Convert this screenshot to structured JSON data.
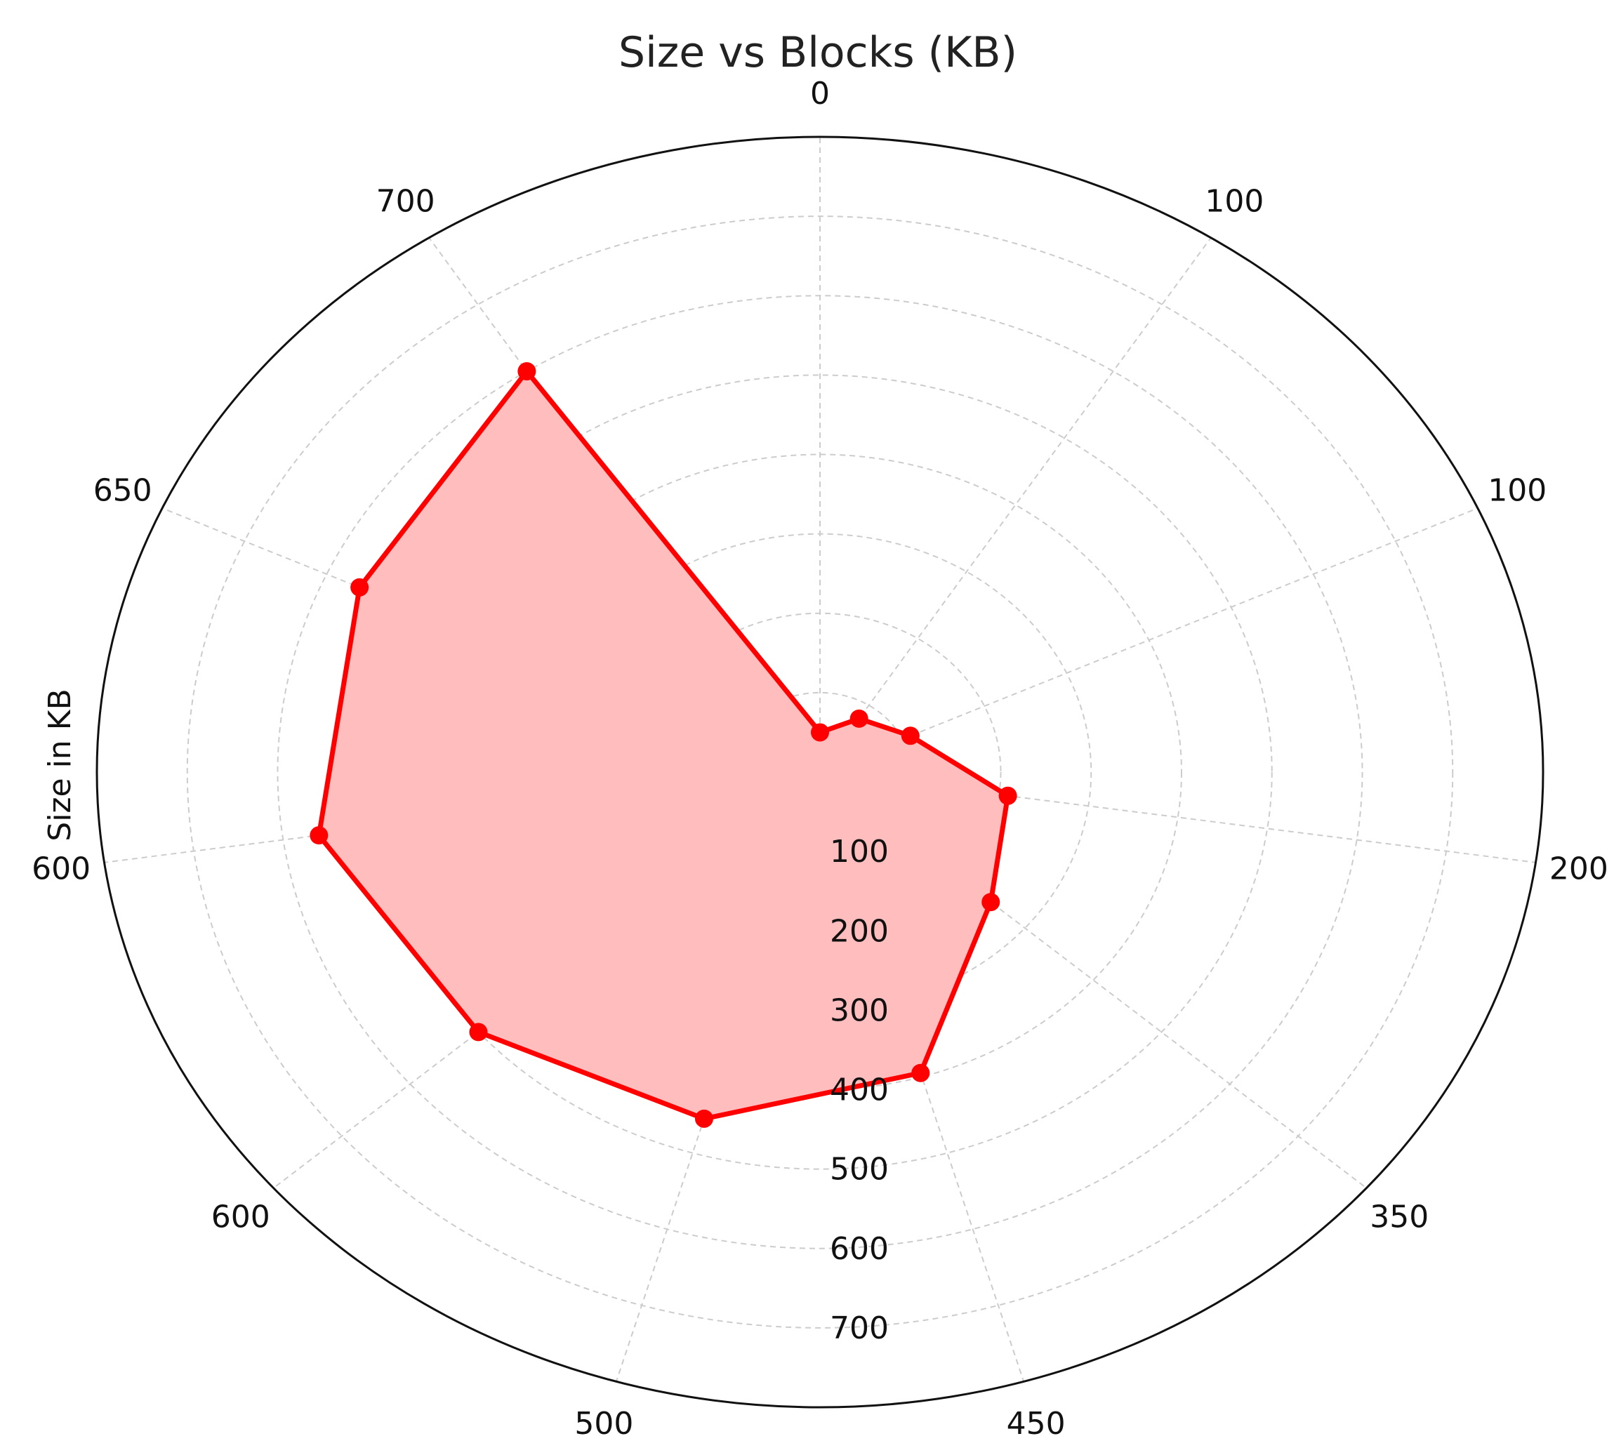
{
  "chart_data": {
    "type": "radar",
    "title": "Size vs Blocks (KB)",
    "ylabel": "Size in KB",
    "angular_tick_labels": [
      "0",
      "100",
      "100",
      "200",
      "350",
      "450",
      "500",
      "600",
      "600",
      "650",
      "700"
    ],
    "radial_tick_labels": [
      "100",
      "200",
      "300",
      "400",
      "500",
      "600",
      "700"
    ],
    "rlim": [
      0,
      800
    ],
    "grid": true,
    "series": [
      {
        "values": [
          50,
          80,
          110,
          210,
          250,
          395,
          455,
          500,
          560,
          560,
          600
        ],
        "color": "#ff0000",
        "fill": "#ffbdbd"
      }
    ]
  }
}
